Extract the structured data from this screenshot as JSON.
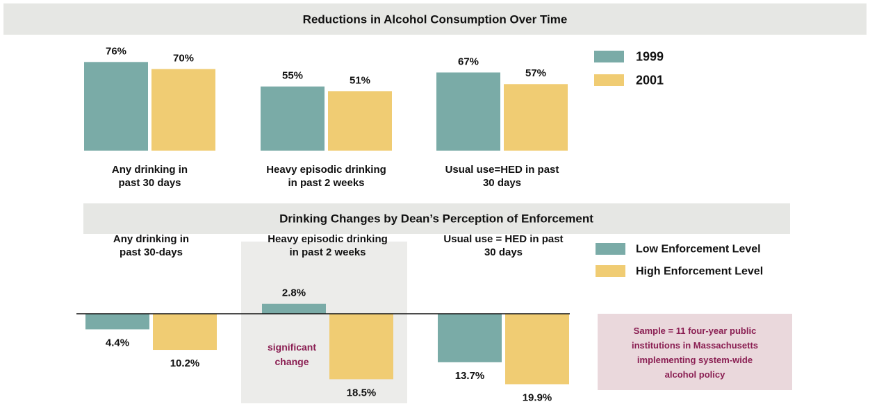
{
  "chart_data": [
    {
      "type": "bar",
      "title": "Reductions in Alcohol Consumption Over Time",
      "categories": [
        "Any drinking in\npast 30 days",
        "Heavy episodic drinking\nin past 2 weeks",
        "Usual use=HED in past\n30 days"
      ],
      "series": [
        {
          "name": "1999",
          "color": "#7aaba7",
          "values": [
            76,
            55,
            67
          ],
          "value_labels": [
            "76%",
            "55%",
            "67%"
          ]
        },
        {
          "name": "2001",
          "color": "#f0cc73",
          "values": [
            70,
            51,
            57
          ],
          "value_labels": [
            "70%",
            "51%",
            "57%"
          ]
        }
      ]
    },
    {
      "type": "bar",
      "title": "Drinking Changes by Dean’s Perception of Enforcement",
      "categories": [
        "Any drinking in\npast 30-days",
        "Heavy episodic drinking\nin past 2 weeks",
        "Usual use = HED in past\n30 days"
      ],
      "series": [
        {
          "name": "Low Enforcement Level",
          "color": "#7aaba7",
          "values": [
            -4.4,
            2.8,
            -13.7
          ],
          "value_labels": [
            "4.4%",
            "2.8%",
            "13.7%"
          ]
        },
        {
          "name": "High Enforcement Level",
          "color": "#f0cc73",
          "values": [
            -10.2,
            -18.5,
            -19.9
          ],
          "value_labels": [
            "10.2%",
            "18.5%",
            "19.9%"
          ]
        }
      ],
      "annotation": "significant\nchange",
      "note": "Sample = 11 four-year public\ninstitutions in Massachusetts\nimplementing system-wide\nalcohol policy"
    }
  ]
}
